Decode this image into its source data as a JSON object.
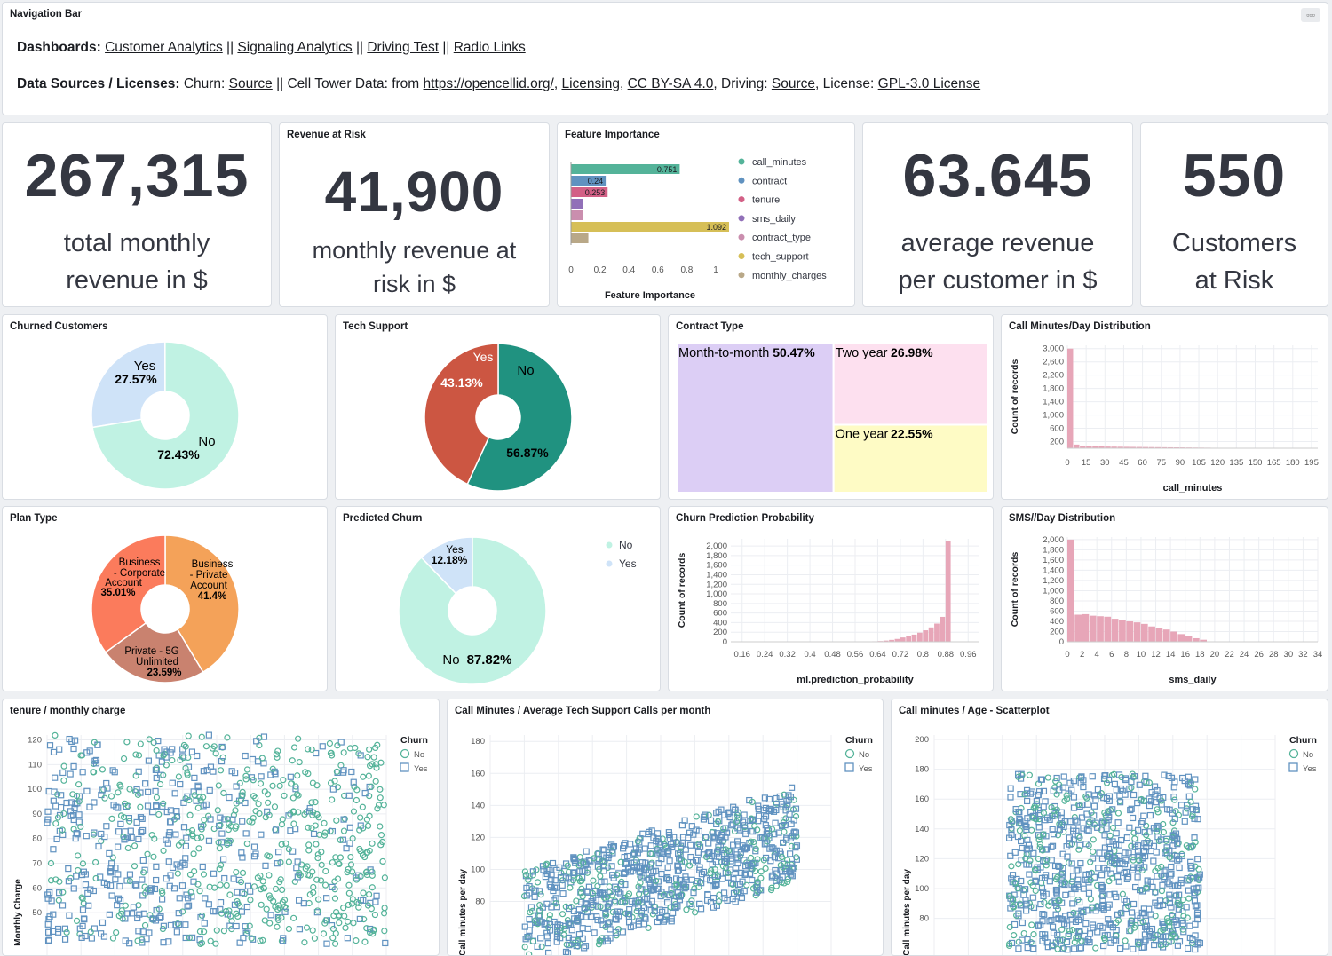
{
  "nav": {
    "title": "Navigation Bar",
    "dash_label": "Dashboards:",
    "links": [
      "Customer Analytics",
      "Signaling Analytics",
      "Driving Test",
      "Radio Links"
    ],
    "sep": "||",
    "src_label": "Data Sources / Licenses:",
    "src_churn": "Churn:",
    "src_source1": "Source",
    "src_cell": "Cell Tower Data: from",
    "src_url": "https://opencellid.org/",
    "src_licensing": "Licensing",
    "src_ccby": "CC BY-SA 4.0",
    "src_driving": ", Driving:",
    "src_source2": "Source",
    "src_license": ", License:",
    "src_gpl": "GPL-3.0 License"
  },
  "metrics": {
    "total": {
      "value": "267,315",
      "line1": "total monthly",
      "line2": "revenue in $"
    },
    "risk": {
      "title": "Revenue at Risk",
      "value": "41,900",
      "line1": "monthly revenue at",
      "line2": "risk in $"
    },
    "avg": {
      "value": "63.645",
      "line1": "average revenue",
      "line2": "per customer in $"
    },
    "customers": {
      "value": "550",
      "line1": "Customers",
      "line2": "at Risk"
    }
  },
  "panels": {
    "feature": "Feature Importance",
    "churned": "Churned Customers",
    "tech": "Tech Support",
    "contract": "Contract Type",
    "callhist": "Call Minutes/Day Distribution",
    "plan": "Plan Type",
    "predicted": "Predicted Churn",
    "prob": "Churn Prediction Probability",
    "sms": "SMS//Day Distribution",
    "scatter1": "tenure / monthly charge",
    "scatter2": "Call Minutes / Average Tech Support Calls per month",
    "scatter3": "Call minutes / Age - Scatterplot"
  },
  "chart_data": [
    {
      "type": "bar",
      "orientation": "horizontal",
      "xlabel": "Feature Importance",
      "xlim": [
        0,
        1
      ],
      "xticks": [
        "0",
        "0.2",
        "0.4",
        "0.6",
        "0.8",
        "1"
      ],
      "series": [
        {
          "name": "call_minutes",
          "color": "#54b399",
          "value": 0.751,
          "label": "0.751"
        },
        {
          "name": "contract",
          "color": "#6092c0",
          "value": 0.24,
          "label": "0.24"
        },
        {
          "name": "tenure",
          "color": "#d36086",
          "value": 0.253,
          "label": "0.253"
        },
        {
          "name": "sms_daily",
          "color": "#9170b8",
          "value": 0.08,
          "label": ""
        },
        {
          "name": "contract_type",
          "color": "#ca8eae",
          "value": 0.08,
          "label": ""
        },
        {
          "name": "tech_support",
          "color": "#d6bf57",
          "value": 1.092,
          "label": "1.092"
        },
        {
          "name": "monthly_charges",
          "color": "#b9a888",
          "value": 0.12,
          "label": ""
        }
      ]
    },
    {
      "type": "pie",
      "slices": [
        {
          "name": "Yes",
          "value": 27.57,
          "label": "27.57%",
          "color": "#cfe3f8"
        },
        {
          "name": "No",
          "value": 72.43,
          "label": "72.43%",
          "color": "#c0f2e3"
        }
      ]
    },
    {
      "type": "pie",
      "slices": [
        {
          "name": "No",
          "value": 56.87,
          "label": "56.87%",
          "color": "#209280"
        },
        {
          "name": "Yes",
          "value": 43.13,
          "label": "43.13%",
          "color": "#cc5642"
        }
      ]
    },
    {
      "type": "treemap",
      "cells": [
        {
          "name": "Month-to-month",
          "value": 50.47,
          "label": "50.47%",
          "color": "#dccef5"
        },
        {
          "name": "Two year",
          "value": 26.98,
          "label": "26.98%",
          "color": "#fde0ef"
        },
        {
          "name": "One year",
          "value": 22.55,
          "label": "22.55%",
          "color": "#fefbc5"
        }
      ]
    },
    {
      "type": "bar",
      "xlabel": "call_minutes",
      "ylabel": "Count of records",
      "xticks": [
        "0",
        "15",
        "30",
        "45",
        "60",
        "75",
        "90",
        "105",
        "120",
        "135",
        "150",
        "165",
        "180",
        "195"
      ],
      "yticks": [
        "200",
        "600",
        "1,000",
        "1,400",
        "1,800",
        "2,200",
        "2,600",
        "3,000"
      ],
      "ylim": [
        0,
        3100
      ],
      "xlim": [
        0,
        200
      ],
      "bin_width": 5,
      "values": [
        3000,
        110,
        70,
        65,
        60,
        55,
        50,
        48,
        45,
        42,
        40,
        38,
        36,
        34,
        32,
        30,
        28,
        26,
        24,
        22,
        20,
        18,
        16,
        14,
        12,
        10,
        9,
        8,
        7,
        6,
        5,
        5,
        4,
        4,
        3,
        3,
        2,
        2,
        1,
        1
      ]
    },
    {
      "type": "pie",
      "slices": [
        {
          "name": "Business - Private Account",
          "value": 41.4,
          "label": "41.4%",
          "color": "#f4a259"
        },
        {
          "name": "Private - 5G Unlimited",
          "value": 23.59,
          "label": "23.59%",
          "color": "#c9826f"
        },
        {
          "name": "Business - Corporate Account",
          "value": 35.01,
          "label": "35.01%",
          "color": "#fb7b5c"
        }
      ]
    },
    {
      "type": "pie",
      "legend": [
        "No",
        "Yes"
      ],
      "slices": [
        {
          "name": "Yes",
          "value": 12.18,
          "label": "12.18%",
          "color": "#cfe3f8"
        },
        {
          "name": "No",
          "value": 87.82,
          "label": "87.82%",
          "color": "#c0f2e3"
        }
      ]
    },
    {
      "type": "bar",
      "xlabel": "ml.prediction_probability",
      "ylabel": "Count of records",
      "xticks": [
        "0.16",
        "0.24",
        "0.32",
        "0.4",
        "0.48",
        "0.56",
        "0.64",
        "0.72",
        "0.8",
        "0.88",
        "0.96"
      ],
      "yticks": [
        "0",
        "200",
        "400",
        "600",
        "800",
        "1,000",
        "1,200",
        "1,400",
        "1,600",
        "1,800",
        "2,000"
      ],
      "ylim": [
        0,
        2150
      ],
      "xlim": [
        0.12,
        1.0
      ],
      "bin_width": 0.02,
      "values": [
        0,
        0,
        0,
        0,
        0,
        0,
        0,
        0,
        0,
        0,
        0,
        0,
        0,
        0,
        0,
        0,
        0,
        0,
        0,
        0,
        0,
        0,
        0,
        0,
        0,
        10,
        15,
        25,
        40,
        60,
        90,
        120,
        150,
        190,
        240,
        300,
        380,
        520,
        2100,
        0,
        0,
        0,
        0,
        0
      ]
    },
    {
      "type": "bar",
      "xlabel": "sms_daily",
      "ylabel": "Count of records",
      "xticks": [
        "0",
        "2",
        "4",
        "6",
        "8",
        "10",
        "12",
        "14",
        "16",
        "18",
        "20",
        "22",
        "24",
        "26",
        "28",
        "30",
        "32",
        "34"
      ],
      "yticks": [
        "0",
        "200",
        "400",
        "600",
        "800",
        "1,000",
        "1,200",
        "1,400",
        "1,600",
        "1,800",
        "2,000"
      ],
      "ylim": [
        0,
        2050
      ],
      "xlim": [
        0,
        34
      ],
      "bin_width": 1,
      "values": [
        2000,
        530,
        540,
        510,
        500,
        490,
        450,
        420,
        400,
        380,
        350,
        300,
        270,
        240,
        200,
        150,
        110,
        70,
        40
      ]
    },
    {
      "type": "scatter",
      "ylabel": "Monthly Charge",
      "yticks": [
        "50",
        "60",
        "70",
        "80",
        "90",
        "100",
        "110",
        "120"
      ],
      "ylim": [
        45,
        122
      ],
      "legend_title": "Churn",
      "legend": [
        "No",
        "Yes"
      ]
    },
    {
      "type": "scatter",
      "ylabel": "Call minutes per day",
      "yticks": [
        "80",
        "100",
        "120",
        "140",
        "160",
        "180"
      ],
      "ylim": [
        62,
        184
      ],
      "legend_title": "Churn",
      "legend": [
        "No",
        "Yes"
      ]
    },
    {
      "type": "scatter",
      "ylabel": "Call minutes per day",
      "yticks": [
        "80",
        "100",
        "120",
        "140",
        "160",
        "180",
        "200"
      ],
      "ylim": [
        72,
        203
      ],
      "legend_title": "Churn",
      "legend": [
        "No",
        "Yes"
      ]
    }
  ]
}
